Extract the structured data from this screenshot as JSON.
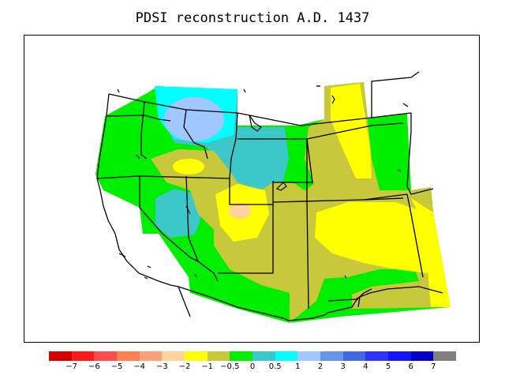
{
  "title": "PDSI reconstruction A.D. 1437",
  "legend": {
    "colors": [
      "#d40000",
      "#ff1a1a",
      "#ff4d4d",
      "#ff7f50",
      "#ffa07a",
      "#ffd39b",
      "#ffff00",
      "#c8c83c",
      "#00ee00",
      "#3cc8c8",
      "#00ffff",
      "#a0c8ff",
      "#6495ed",
      "#4169e1",
      "#3232ff",
      "#1414ff",
      "#0000c8",
      "#808080"
    ],
    "ticks": [
      "−7",
      "−6",
      "−5",
      "−4",
      "−3",
      "−2",
      "−1",
      "−0.5",
      "0",
      "0.5",
      "1",
      "2",
      "3",
      "4",
      "5",
      "6",
      "7"
    ]
  },
  "map": {
    "region": "western-united-states",
    "data_fill_colors": {
      "dry_moderate": "#ffff00",
      "dry_slight": "#c8c83c",
      "near_normal_wet": "#00ee00",
      "wet_slight": "#3cc8c8",
      "wet_moderate": "#00ffff",
      "wet_strong": "#a0c8ff",
      "dry_strong": "#ffd39b"
    }
  }
}
